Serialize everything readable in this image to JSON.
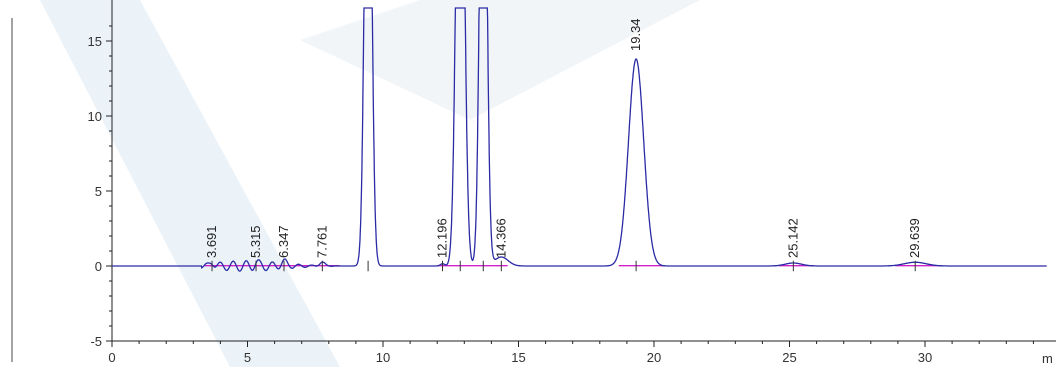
{
  "chart_data": {
    "type": "line",
    "title": "",
    "xlabel": "m",
    "ylabel": "",
    "xlim": [
      0,
      34.5
    ],
    "ylim": [
      -5.5,
      17
    ],
    "x_ticks": [
      0,
      5,
      10,
      15,
      20,
      25,
      30
    ],
    "y_ticks": [
      -5,
      0,
      5,
      10,
      15
    ],
    "grid": false,
    "colors": {
      "signal": "#2b2ba6",
      "baseline": "#d020c8",
      "axis": "#222222",
      "watermark": "#dbe9f4"
    },
    "peaks": [
      {
        "time": 3.691,
        "height": 0.25,
        "width": 0.08,
        "label": "3.691"
      },
      {
        "time": 5.315,
        "height": 0.2,
        "width": 0.08,
        "label": "5.315"
      },
      {
        "time": 6.347,
        "height": 0.3,
        "width": 0.1,
        "label": "6.347"
      },
      {
        "time": 7.761,
        "height": 0.25,
        "width": 0.1,
        "label": "7.761"
      },
      {
        "time": 9.45,
        "height": 40,
        "width": 0.12,
        "label": ""
      },
      {
        "time": 12.196,
        "height": 0.15,
        "width": 0.08,
        "label": "12.196"
      },
      {
        "time": 12.85,
        "height": 40,
        "width": 0.14,
        "label": ""
      },
      {
        "time": 13.7,
        "height": 40,
        "width": 0.12,
        "label": ""
      },
      {
        "time": 14.366,
        "height": 0.6,
        "width": 0.25,
        "label": "14.366"
      },
      {
        "time": 19.34,
        "height": 13.8,
        "width": 0.28,
        "label": "19.34"
      },
      {
        "time": 25.142,
        "height": 0.2,
        "width": 0.3,
        "label": "25.142"
      },
      {
        "time": 29.639,
        "height": 0.25,
        "width": 0.4,
        "label": "29.639"
      }
    ],
    "baseline_ranges": [
      [
        3.4,
        8.4
      ],
      [
        12.0,
        14.6
      ],
      [
        18.7,
        20.4
      ],
      [
        24.6,
        25.9
      ],
      [
        28.9,
        30.6
      ]
    ]
  }
}
